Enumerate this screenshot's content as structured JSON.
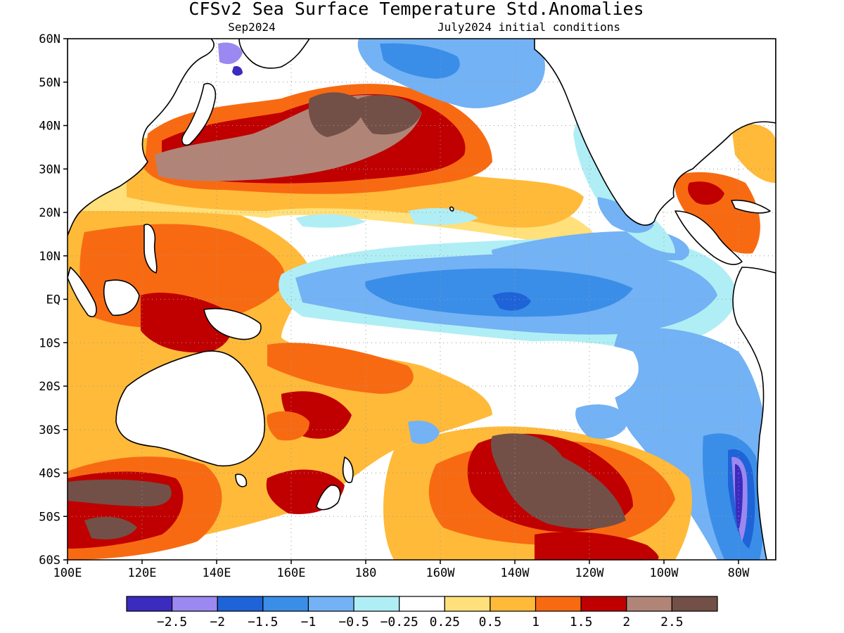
{
  "title": "CFSv2 Sea Surface Temperature Std.Anomalies",
  "subtitle_left": "Sep2024",
  "subtitle_right": "July2024 initial conditions",
  "map": {
    "lon_range": [
      100,
      290
    ],
    "lat_range": [
      -60,
      60
    ],
    "lon_labels": [
      "100E",
      "120E",
      "140E",
      "160E",
      "180",
      "160W",
      "140W",
      "120W",
      "100W",
      "80W"
    ],
    "lat_labels": [
      "60N",
      "50N",
      "40N",
      "30N",
      "20N",
      "10N",
      "EQ",
      "10S",
      "20S",
      "30S",
      "40S",
      "50S",
      "60S"
    ],
    "grid": true
  },
  "colorbar": {
    "colors": [
      "#3b2bbf",
      "#9b88f0",
      "#1f63d8",
      "#3a8ee8",
      "#73b2f4",
      "#b0eef5",
      "#ffffff",
      "#ffe07a",
      "#ffba3a",
      "#f86a12",
      "#c00000",
      "#b18478",
      "#725048"
    ],
    "labels": [
      "−2.5",
      "−2",
      "−1.5",
      "−1",
      "−0.5",
      "−0.25",
      "0.25",
      "0.5",
      "1",
      "1.5",
      "2",
      "2.5"
    ]
  }
}
